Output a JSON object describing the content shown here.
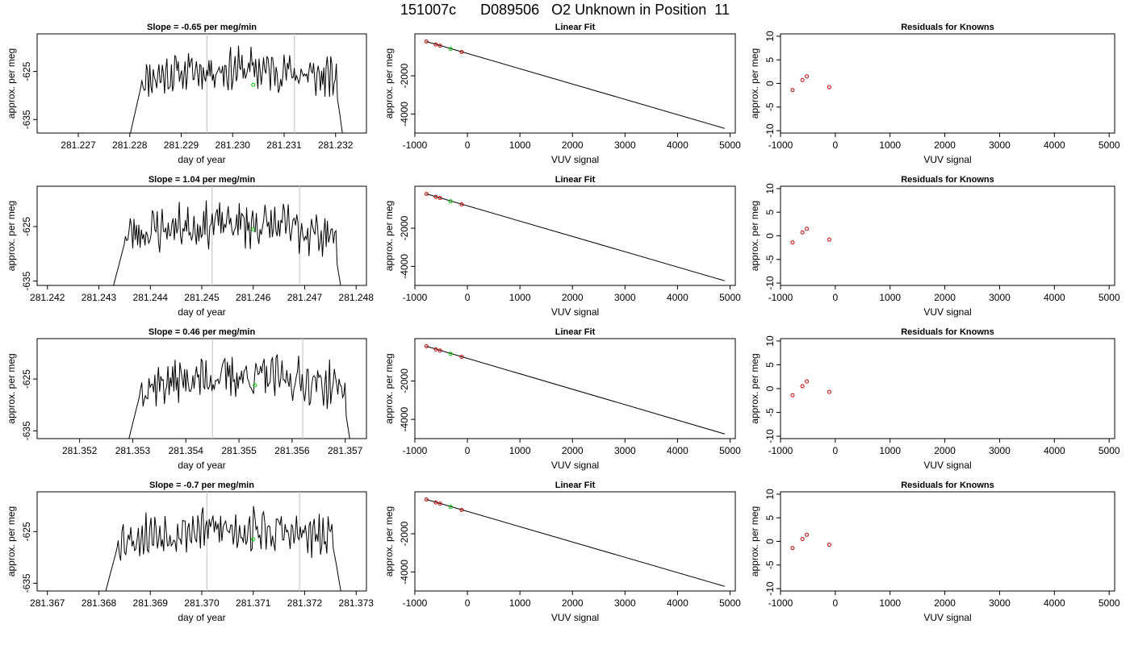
{
  "figure": {
    "title": "151007c      D089506   O2 Unknown in Position  11"
  },
  "colors": {
    "trace": "#000000",
    "reference_line": "#c8c8c8",
    "unknown_point": "#00cc00",
    "known_point": "#cc0000",
    "axis": "#000000"
  },
  "chart_data": [
    {
      "type": "line",
      "row": 1,
      "panel": "time-series",
      "title": "Slope =  -0.65  per meg/min",
      "xlabel": "day of year",
      "ylabel": "approx. per meg",
      "xlim": [
        281.2262,
        281.2326
      ],
      "ylim": [
        -637.8,
        -617.2
      ],
      "xticks": [
        281.227,
        281.228,
        281.229,
        281.23,
        281.231,
        281.232
      ],
      "xtick_labels": [
        "281.227",
        "281.228",
        "281.229",
        "281.230",
        "281.231",
        "281.232"
      ],
      "yticks": [
        -625,
        -635
      ],
      "ytick_labels": [
        "-625",
        "-635"
      ],
      "x_start": 281.22797,
      "x_end": 281.23217,
      "vlines": [
        281.2295,
        281.2312
      ],
      "unknown_point": [
        281.2304,
        -627.8
      ],
      "seed": 11
    },
    {
      "type": "scatter",
      "row": 1,
      "panel": "linear-fit",
      "title": "Linear Fit",
      "xlabel": "VUV signal",
      "ylabel": "approx. per meg",
      "xlim": [
        -1000,
        5100
      ],
      "ylim": [
        -5000,
        200
      ],
      "xticks": [
        -1000,
        0,
        1000,
        2000,
        3000,
        4000,
        5000
      ],
      "xtick_labels": [
        "-1000",
        "0",
        "1000",
        "2000",
        "3000",
        "4000",
        "5000"
      ],
      "yticks": [
        -2000,
        -4000
      ],
      "ytick_labels": [
        "-2000",
        "-4000"
      ],
      "fit_line": [
        [
          -780,
          -200
        ],
        [
          4900,
          -4760
        ]
      ],
      "known_points": [
        [
          -780,
          -200
        ],
        [
          -600,
          -360
        ],
        [
          -520,
          -420
        ],
        [
          -110,
          -750
        ]
      ],
      "unknown_point": [
        -320,
        -590
      ]
    },
    {
      "type": "scatter",
      "row": 1,
      "panel": "residuals",
      "title": "Residuals for Knowns",
      "xlabel": "VUV signal",
      "ylabel": "approx. per meg",
      "xlim": [
        -1000,
        5100
      ],
      "ylim": [
        -10.5,
        10.5
      ],
      "xticks": [
        -1000,
        0,
        1000,
        2000,
        3000,
        4000,
        5000
      ],
      "xtick_labels": [
        "-1000",
        "0",
        "1000",
        "2000",
        "3000",
        "4000",
        "5000"
      ],
      "yticks": [
        -10,
        -5,
        0,
        5,
        10
      ],
      "ytick_labels": [
        "-10",
        "-5",
        "0",
        "5",
        "10"
      ],
      "known_points": [
        [
          -780,
          -1.4
        ],
        [
          -600,
          0.7
        ],
        [
          -520,
          1.5
        ],
        [
          -110,
          -0.8
        ]
      ]
    },
    {
      "type": "line",
      "row": 2,
      "panel": "time-series",
      "title": "Slope =  1.04  per meg/min",
      "xlabel": "day of year",
      "ylabel": "approx. per meg",
      "xlim": [
        281.2418,
        281.2482
      ],
      "ylim": [
        -635.8,
        -617.6
      ],
      "xticks": [
        281.242,
        281.243,
        281.244,
        281.245,
        281.246,
        281.247,
        281.248
      ],
      "xtick_labels": [
        "281.242",
        "281.243",
        "281.244",
        "281.245",
        "281.246",
        "281.247",
        "281.248"
      ],
      "yticks": [
        -625,
        -635
      ],
      "ytick_labels": [
        "-625",
        "-635"
      ],
      "x_start": 281.24323,
      "x_end": 281.24775,
      "vlines": [
        281.2452,
        281.2469
      ],
      "unknown_point": [
        281.246,
        -625.5
      ],
      "seed": 23
    },
    {
      "type": "scatter",
      "row": 2,
      "panel": "linear-fit",
      "title": "Linear Fit",
      "xlabel": "VUV signal",
      "ylabel": "approx. per meg",
      "xlim": [
        -1000,
        5100
      ],
      "ylim": [
        -5000,
        200
      ],
      "xticks": [
        -1000,
        0,
        1000,
        2000,
        3000,
        4000,
        5000
      ],
      "xtick_labels": [
        "-1000",
        "0",
        "1000",
        "2000",
        "3000",
        "4000",
        "5000"
      ],
      "yticks": [
        -2000,
        -4000
      ],
      "ytick_labels": [
        "-2000",
        "-4000"
      ],
      "fit_line": [
        [
          -780,
          -200
        ],
        [
          4900,
          -4760
        ]
      ],
      "known_points": [
        [
          -780,
          -200
        ],
        [
          -600,
          -360
        ],
        [
          -520,
          -420
        ],
        [
          -110,
          -750
        ]
      ],
      "unknown_point": [
        -320,
        -590
      ]
    },
    {
      "type": "scatter",
      "row": 2,
      "panel": "residuals",
      "title": "Residuals for Knowns",
      "xlabel": "VUV signal",
      "ylabel": "approx. per meg",
      "xlim": [
        -1000,
        5100
      ],
      "ylim": [
        -10.5,
        10.5
      ],
      "xticks": [
        -1000,
        0,
        1000,
        2000,
        3000,
        4000,
        5000
      ],
      "xtick_labels": [
        "-1000",
        "0",
        "1000",
        "2000",
        "3000",
        "4000",
        "5000"
      ],
      "yticks": [
        -10,
        -5,
        0,
        5,
        10
      ],
      "ytick_labels": [
        "-10",
        "-5",
        "0",
        "5",
        "10"
      ],
      "known_points": [
        [
          -780,
          -1.4
        ],
        [
          -600,
          0.7
        ],
        [
          -520,
          1.5
        ],
        [
          -110,
          -0.8
        ]
      ]
    },
    {
      "type": "line",
      "row": 3,
      "panel": "time-series",
      "title": "Slope =  0.46  per meg/min",
      "xlabel": "day of year",
      "ylabel": "approx. per meg",
      "xlim": [
        281.3512,
        281.3574
      ],
      "ylim": [
        -636.5,
        -617.2
      ],
      "xticks": [
        281.352,
        281.353,
        281.354,
        281.355,
        281.356,
        281.357
      ],
      "xtick_labels": [
        "281.352",
        "281.353",
        "281.354",
        "281.355",
        "281.356",
        "281.357"
      ],
      "yticks": [
        -625,
        -635
      ],
      "ytick_labels": [
        "-625",
        "-635"
      ],
      "x_start": 281.35288,
      "x_end": 281.35713,
      "vlines": [
        281.3545,
        281.3562
      ],
      "unknown_point": [
        281.3553,
        -626.2
      ],
      "seed": 37
    },
    {
      "type": "scatter",
      "row": 3,
      "panel": "linear-fit",
      "title": "Linear Fit",
      "xlabel": "VUV signal",
      "ylabel": "approx. per meg",
      "xlim": [
        -1000,
        5100
      ],
      "ylim": [
        -5000,
        200
      ],
      "xticks": [
        -1000,
        0,
        1000,
        2000,
        3000,
        4000,
        5000
      ],
      "xtick_labels": [
        "-1000",
        "0",
        "1000",
        "2000",
        "3000",
        "4000",
        "5000"
      ],
      "yticks": [
        -2000,
        -4000
      ],
      "ytick_labels": [
        "-2000",
        "-4000"
      ],
      "fit_line": [
        [
          -780,
          -200
        ],
        [
          4900,
          -4760
        ]
      ],
      "known_points": [
        [
          -780,
          -200
        ],
        [
          -600,
          -360
        ],
        [
          -520,
          -420
        ],
        [
          -110,
          -750
        ]
      ],
      "unknown_point": [
        -320,
        -590
      ]
    },
    {
      "type": "scatter",
      "row": 3,
      "panel": "residuals",
      "title": "Residuals for Knowns",
      "xlabel": "VUV signal",
      "ylabel": "approx. per meg",
      "xlim": [
        -1000,
        5100
      ],
      "ylim": [
        -10.5,
        10.5
      ],
      "xticks": [
        -1000,
        0,
        1000,
        2000,
        3000,
        4000,
        5000
      ],
      "xtick_labels": [
        "-1000",
        "0",
        "1000",
        "2000",
        "3000",
        "4000",
        "5000"
      ],
      "yticks": [
        -10,
        -5,
        0,
        5,
        10
      ],
      "ytick_labels": [
        "-10",
        "-5",
        "0",
        "5",
        "10"
      ],
      "known_points": [
        [
          -780,
          -1.4
        ],
        [
          -600,
          0.5
        ],
        [
          -520,
          1.5
        ],
        [
          -110,
          -0.7
        ]
      ]
    },
    {
      "type": "line",
      "row": 4,
      "panel": "time-series",
      "title": "Slope =  -0.7  per meg/min",
      "xlabel": "day of year",
      "ylabel": "approx. per meg",
      "xlim": [
        281.3668,
        281.3732
      ],
      "ylim": [
        -636.5,
        -617.3
      ],
      "xticks": [
        281.367,
        281.368,
        281.369,
        281.37,
        281.371,
        281.372,
        281.373
      ],
      "xtick_labels": [
        "281.367",
        "281.368",
        "281.369",
        "281.370",
        "281.371",
        "281.372",
        "281.373"
      ],
      "yticks": [
        -625,
        -635
      ],
      "ytick_labels": [
        "-625",
        "-635"
      ],
      "x_start": 281.36808,
      "x_end": 281.37275,
      "vlines": [
        281.3701,
        281.3719
      ],
      "unknown_point": [
        281.371,
        -626.5
      ],
      "seed": 53
    },
    {
      "type": "scatter",
      "row": 4,
      "panel": "linear-fit",
      "title": "Linear Fit",
      "xlabel": "VUV signal",
      "ylabel": "approx. per meg",
      "xlim": [
        -1000,
        5100
      ],
      "ylim": [
        -5000,
        200
      ],
      "xticks": [
        -1000,
        0,
        1000,
        2000,
        3000,
        4000,
        5000
      ],
      "xtick_labels": [
        "-1000",
        "0",
        "1000",
        "2000",
        "3000",
        "4000",
        "5000"
      ],
      "yticks": [
        -2000,
        -4000
      ],
      "ytick_labels": [
        "-2000",
        "-4000"
      ],
      "fit_line": [
        [
          -780,
          -200
        ],
        [
          4900,
          -4760
        ]
      ],
      "known_points": [
        [
          -780,
          -200
        ],
        [
          -600,
          -360
        ],
        [
          -520,
          -420
        ],
        [
          -110,
          -750
        ]
      ],
      "unknown_point": [
        -320,
        -590
      ]
    },
    {
      "type": "scatter",
      "row": 4,
      "panel": "residuals",
      "title": "Residuals for Knowns",
      "xlabel": "VUV signal",
      "ylabel": "approx. per meg",
      "xlim": [
        -1000,
        5100
      ],
      "ylim": [
        -10.5,
        10.5
      ],
      "xticks": [
        -1000,
        0,
        1000,
        2000,
        3000,
        4000,
        5000
      ],
      "xtick_labels": [
        "-1000",
        "0",
        "1000",
        "2000",
        "3000",
        "4000",
        "5000"
      ],
      "yticks": [
        -10,
        -5,
        0,
        5,
        10
      ],
      "ytick_labels": [
        "-10",
        "-5",
        "0",
        "5",
        "10"
      ],
      "known_points": [
        [
          -780,
          -1.4
        ],
        [
          -600,
          0.5
        ],
        [
          -520,
          1.4
        ],
        [
          -110,
          -0.7
        ]
      ]
    }
  ]
}
